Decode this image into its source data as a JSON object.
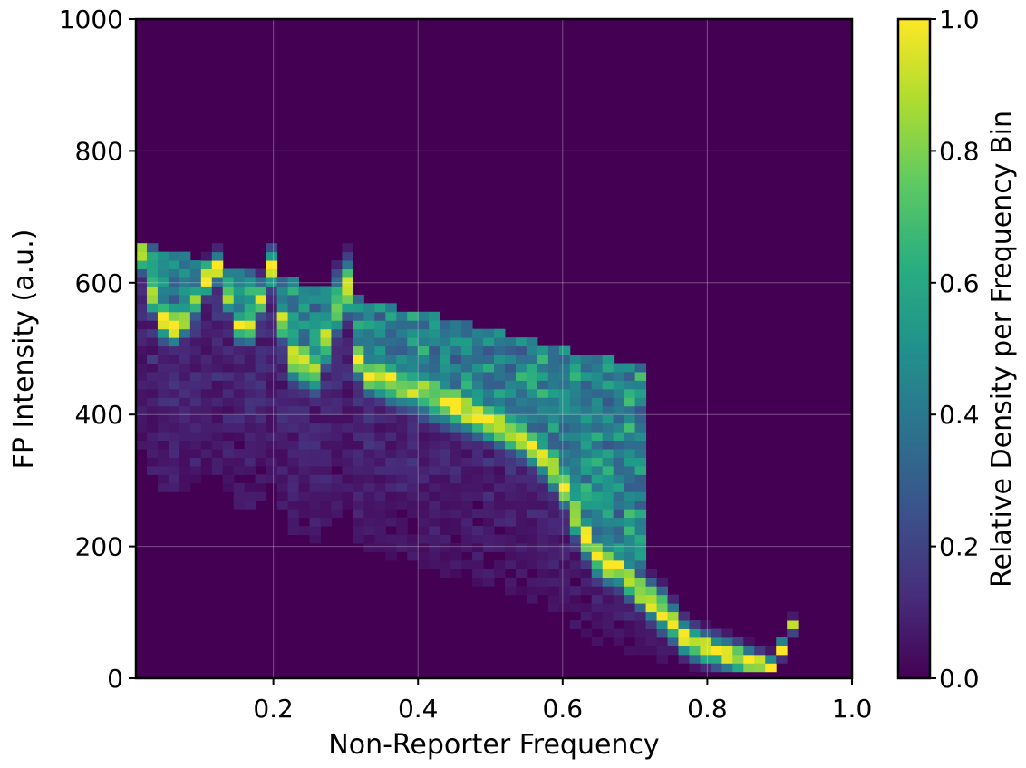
{
  "chart_data": {
    "type": "heatmap",
    "title": "",
    "xlabel": "Non-Reporter Frequency",
    "ylabel": "FP Intensity (a.u.)",
    "xlim": [
      0.01,
      1.0
    ],
    "ylim": [
      0,
      1000
    ],
    "x_ticks": [
      0.2,
      0.4,
      0.6,
      0.8,
      1.0
    ],
    "x_tick_labels": [
      "0.2",
      "0.4",
      "0.6",
      "0.8",
      "1.0"
    ],
    "y_ticks": [
      0,
      200,
      400,
      600,
      800,
      1000
    ],
    "y_tick_labels": [
      "0",
      "200",
      "400",
      "600",
      "800",
      "1000"
    ],
    "grid": true,
    "colormap": "viridis",
    "colorbar": {
      "label": "Relative Density per Frequency Bin",
      "range": [
        0.0,
        1.0
      ],
      "ticks": [
        0.0,
        0.2,
        0.4,
        0.6,
        0.8,
        1.0
      ],
      "tick_labels": [
        "0.0",
        "0.2",
        "0.4",
        "0.6",
        "0.8",
        "1.0"
      ]
    },
    "x_bins": 66,
    "y_bins": 50,
    "y_bin_start": 10,
    "y_bin_width": 13,
    "background_value": 0.0,
    "ridge": [
      {
        "x": 0.02,
        "y": 645,
        "density": 1.0,
        "width": 18
      },
      {
        "x": 0.04,
        "y": 548,
        "density": 0.95,
        "width": 22
      },
      {
        "x": 0.07,
        "y": 530,
        "density": 1.0,
        "width": 18
      },
      {
        "x": 0.12,
        "y": 630,
        "density": 1.0,
        "width": 15
      },
      {
        "x": 0.16,
        "y": 512,
        "density": 1.0,
        "width": 16
      },
      {
        "x": 0.2,
        "y": 630,
        "density": 1.0,
        "width": 18
      },
      {
        "x": 0.22,
        "y": 490,
        "density": 0.95,
        "width": 22
      },
      {
        "x": 0.26,
        "y": 470,
        "density": 0.95,
        "width": 25
      },
      {
        "x": 0.3,
        "y": 610,
        "density": 0.85,
        "width": 30
      },
      {
        "x": 0.32,
        "y": 465,
        "density": 1.0,
        "width": 18
      },
      {
        "x": 0.36,
        "y": 450,
        "density": 1.0,
        "width": 20
      },
      {
        "x": 0.4,
        "y": 440,
        "density": 0.9,
        "width": 25
      },
      {
        "x": 0.44,
        "y": 420,
        "density": 0.9,
        "width": 25
      },
      {
        "x": 0.48,
        "y": 400,
        "density": 1.0,
        "width": 20
      },
      {
        "x": 0.52,
        "y": 380,
        "density": 1.0,
        "width": 20
      },
      {
        "x": 0.55,
        "y": 360,
        "density": 1.0,
        "width": 20
      },
      {
        "x": 0.58,
        "y": 330,
        "density": 0.95,
        "width": 22
      },
      {
        "x": 0.6,
        "y": 300,
        "density": 1.0,
        "width": 22
      },
      {
        "x": 0.62,
        "y": 240,
        "density": 1.0,
        "width": 22
      },
      {
        "x": 0.65,
        "y": 180,
        "density": 1.0,
        "width": 20
      },
      {
        "x": 0.68,
        "y": 165,
        "density": 1.0,
        "width": 18
      },
      {
        "x": 0.71,
        "y": 130,
        "density": 0.95,
        "width": 18
      },
      {
        "x": 0.74,
        "y": 100,
        "density": 1.0,
        "width": 20
      },
      {
        "x": 0.77,
        "y": 60,
        "density": 1.0,
        "width": 16
      },
      {
        "x": 0.8,
        "y": 45,
        "density": 1.0,
        "width": 15
      },
      {
        "x": 0.83,
        "y": 35,
        "density": 1.0,
        "width": 14
      },
      {
        "x": 0.86,
        "y": 25,
        "density": 1.0,
        "width": 12
      },
      {
        "x": 0.89,
        "y": 18,
        "density": 1.0,
        "width": 10
      },
      {
        "x": 0.92,
        "y": 85,
        "density": 1.0,
        "width": 6
      }
    ],
    "upper_band": {
      "x_start": 0.01,
      "x_end": 0.72,
      "y_top_start": 660,
      "y_top_end": 470,
      "density": 0.55
    },
    "lower_cloud": {
      "x_start": 0.01,
      "x_end": 0.88,
      "density": 0.12
    }
  }
}
